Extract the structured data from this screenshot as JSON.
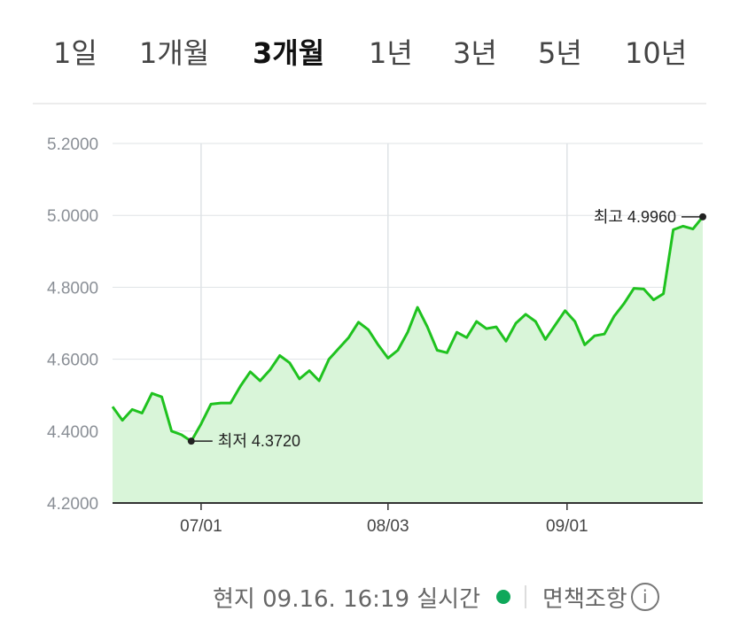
{
  "period_tabs": [
    {
      "label": "1일",
      "active": false
    },
    {
      "label": "1개월",
      "active": false
    },
    {
      "label": "3개월",
      "active": true
    },
    {
      "label": "1년",
      "active": false
    },
    {
      "label": "3년",
      "active": false
    },
    {
      "label": "5년",
      "active": false
    },
    {
      "label": "10년",
      "active": false
    }
  ],
  "footer": {
    "status": "현지 09.16. 16:19 실시간",
    "live_color": "#0fa85a",
    "link": "면책조항",
    "info_icon": "info-circle-icon"
  },
  "colors": {
    "line": "#1fc21f",
    "fill": "#d9f5d9",
    "grid": "#dfe3e6"
  },
  "chart_data": {
    "type": "area",
    "y_ticks": [
      "5.2000",
      "5.0000",
      "4.8000",
      "4.6000",
      "4.4000",
      "4.2000"
    ],
    "ylim": [
      4.2,
      5.2
    ],
    "x_ticks": [
      "07/01",
      "08/03",
      "09/01"
    ],
    "x_tick_index": [
      9.0,
      28.0,
      46.2
    ],
    "series": [
      {
        "values": [
          4.468,
          4.43,
          4.46,
          4.45,
          4.505,
          4.495,
          4.4,
          4.39,
          4.372,
          4.42,
          4.475,
          4.478,
          4.478,
          4.525,
          4.565,
          4.54,
          4.57,
          4.61,
          4.59,
          4.545,
          4.568,
          4.54,
          4.6,
          4.63,
          4.66,
          4.703,
          4.682,
          4.64,
          4.603,
          4.625,
          4.675,
          4.744,
          4.69,
          4.625,
          4.618,
          4.675,
          4.66,
          4.705,
          4.685,
          4.69,
          4.65,
          4.7,
          4.725,
          4.705,
          4.655,
          4.695,
          4.735,
          4.705,
          4.64,
          4.665,
          4.67,
          4.72,
          4.755,
          4.797,
          4.795,
          4.765,
          4.782,
          4.96,
          4.97,
          4.962,
          4.996
        ]
      }
    ],
    "annotations": [
      {
        "label": "최고 4.9960",
        "index": 60,
        "value": 4.996
      },
      {
        "label": "최저 4.3720",
        "index": 8,
        "value": 4.372
      }
    ]
  }
}
